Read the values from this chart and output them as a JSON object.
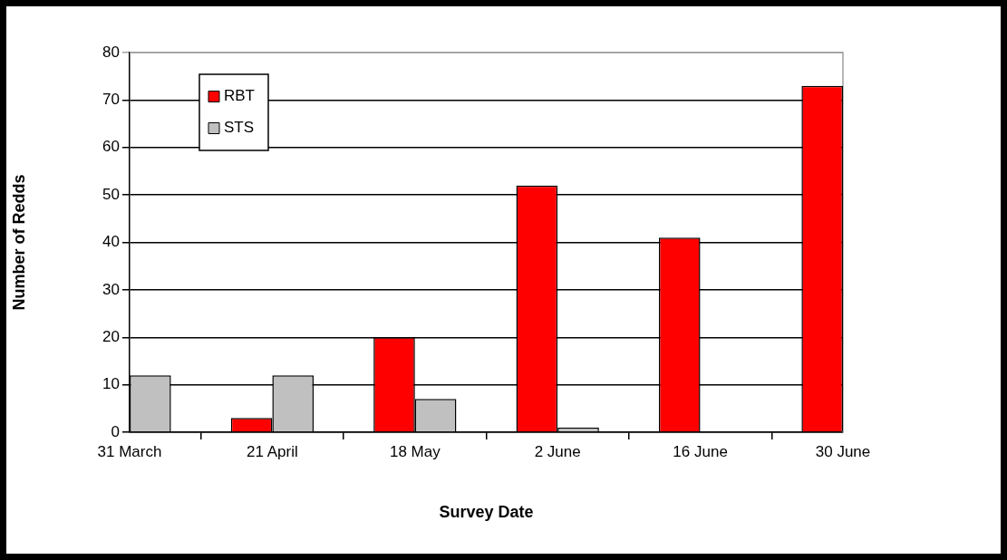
{
  "chart_data": {
    "type": "bar",
    "xlabel": "Survey Date",
    "ylabel": "Number of Redds",
    "categories": [
      "31 March",
      "21 April",
      "18 May",
      "2 June",
      "16 June",
      "30 June"
    ],
    "series": [
      {
        "name": "RBT",
        "color": "#ff0000",
        "values": [
          null,
          3,
          20,
          52,
          41,
          73
        ]
      },
      {
        "name": "STS",
        "color": "#c0c0c0",
        "values": [
          12,
          12,
          7,
          1,
          0,
          null
        ]
      }
    ],
    "ylim": [
      0,
      80
    ],
    "yticks": [
      0,
      10,
      20,
      30,
      40,
      50,
      60,
      70,
      80
    ],
    "grid": "y",
    "legend": "top left"
  }
}
